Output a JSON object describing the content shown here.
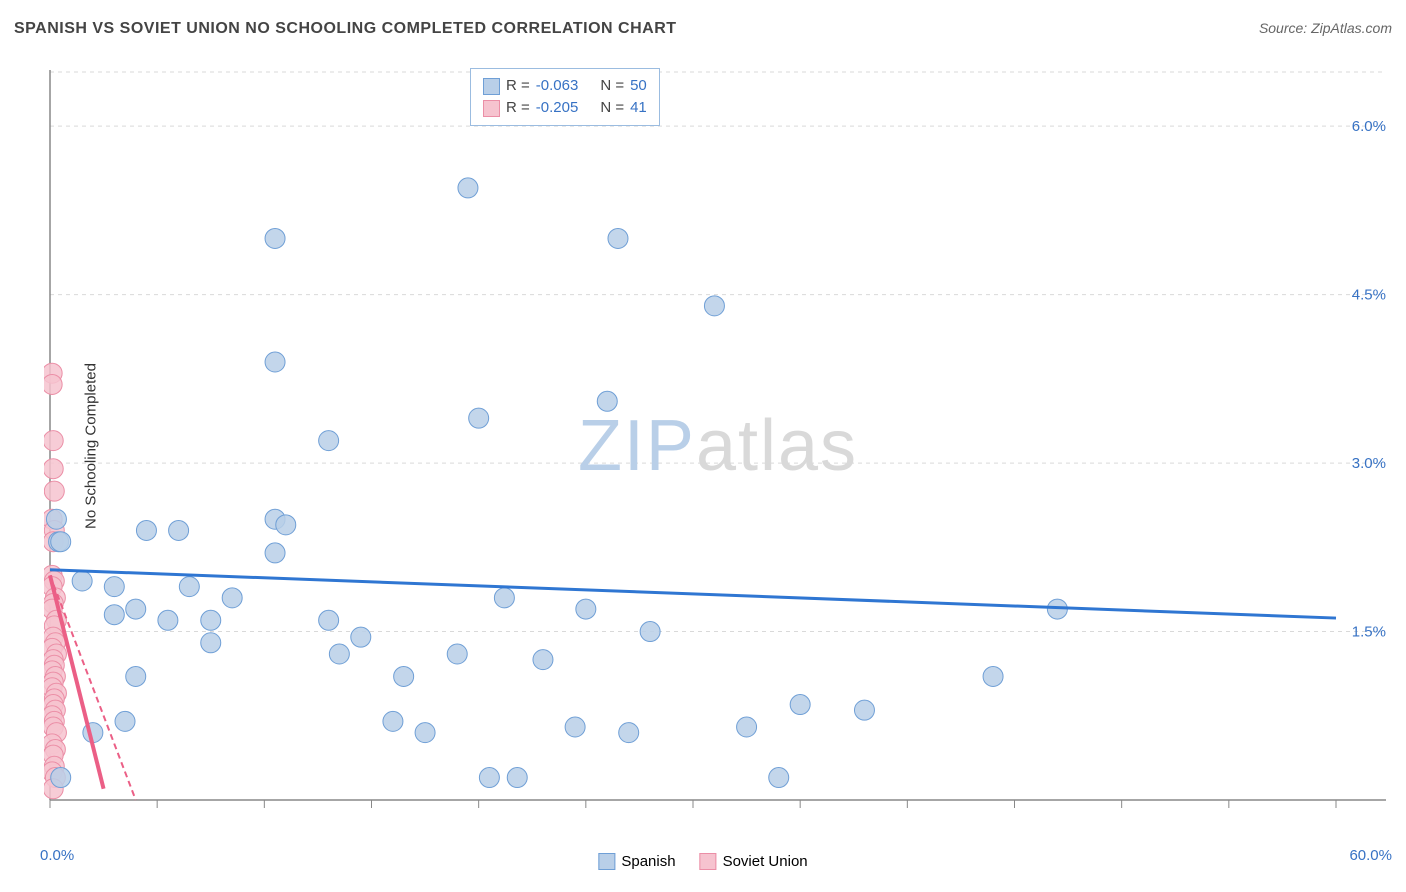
{
  "title": "SPANISH VS SOVIET UNION NO SCHOOLING COMPLETED CORRELATION CHART",
  "source": "Source: ZipAtlas.com",
  "title_color": "#444444",
  "source_color": "#666666",
  "y_axis_label": "No Schooling Completed",
  "watermark": {
    "big": "ZIP",
    "small": "atlas",
    "big_color": "#b9cfe8",
    "small_color": "#d9d9d9"
  },
  "chart": {
    "type": "scatter",
    "background_color": "#ffffff",
    "axis_color": "#888888",
    "grid_color": "#d9d9d9",
    "tick_color": "#888888",
    "x": {
      "min": 0,
      "max": 60,
      "origin_label": "0.0%",
      "end_label": "60.0%",
      "tick_step": 5,
      "label_color": "#3772c4"
    },
    "y": {
      "min": 0,
      "max": 6.5,
      "grid_values": [
        1.5,
        3.0,
        4.5,
        6.0
      ],
      "grid_labels": [
        "1.5%",
        "3.0%",
        "4.5%",
        "6.0%"
      ],
      "label_color": "#3772c4"
    },
    "marker_radius": 10,
    "marker_border_width": 1,
    "series": [
      {
        "name": "Spanish",
        "fill": "#b9cfe8",
        "stroke": "#6f9fd6",
        "r_value": "-0.063",
        "n_value": "50",
        "trend": {
          "y_at_xmin": 2.05,
          "y_at_xmax": 1.62,
          "color": "#2f76d2",
          "width": 3
        },
        "points": [
          [
            0.3,
            2.5
          ],
          [
            0.4,
            2.3
          ],
          [
            0.5,
            2.3
          ],
          [
            0.5,
            0.2
          ],
          [
            1.5,
            1.95
          ],
          [
            2.0,
            0.6
          ],
          [
            3.0,
            1.65
          ],
          [
            3.0,
            1.9
          ],
          [
            3.5,
            0.7
          ],
          [
            4.0,
            1.7
          ],
          [
            4.0,
            1.1
          ],
          [
            4.5,
            2.4
          ],
          [
            5.5,
            1.6
          ],
          [
            6.0,
            2.4
          ],
          [
            6.5,
            1.9
          ],
          [
            7.5,
            1.4
          ],
          [
            7.5,
            1.6
          ],
          [
            8.5,
            1.8
          ],
          [
            10.5,
            2.5
          ],
          [
            10.5,
            2.2
          ],
          [
            10.5,
            3.9
          ],
          [
            10.5,
            5.0
          ],
          [
            11.0,
            2.45
          ],
          [
            13.0,
            1.6
          ],
          [
            13.0,
            3.2
          ],
          [
            13.5,
            1.3
          ],
          [
            14.5,
            1.45
          ],
          [
            16.0,
            0.7
          ],
          [
            16.5,
            1.1
          ],
          [
            17.5,
            0.6
          ],
          [
            19.0,
            1.3
          ],
          [
            19.5,
            5.45
          ],
          [
            20.0,
            3.4
          ],
          [
            20.5,
            0.2
          ],
          [
            21.2,
            1.8
          ],
          [
            21.8,
            0.2
          ],
          [
            23.0,
            1.25
          ],
          [
            24.5,
            0.65
          ],
          [
            25.0,
            1.7
          ],
          [
            26.0,
            3.55
          ],
          [
            27.0,
            0.6
          ],
          [
            26.5,
            5.0
          ],
          [
            28.0,
            1.5
          ],
          [
            31.0,
            4.4
          ],
          [
            32.5,
            0.65
          ],
          [
            34.0,
            0.2
          ],
          [
            35.0,
            0.85
          ],
          [
            38.0,
            0.8
          ],
          [
            44.0,
            1.1
          ],
          [
            47.0,
            1.7
          ]
        ]
      },
      {
        "name": "Soviet Union",
        "fill": "#f6c3cf",
        "stroke": "#eb8ea6",
        "r_value": "-0.205",
        "n_value": "41",
        "trend": {
          "y_at_xmin": 2.0,
          "y_at_xmax_x": 4.0,
          "y_at_xmax": 0.0,
          "color": "#eb5f86",
          "width": 2,
          "dash": "6 4"
        },
        "trend_solid": {
          "y_at_xmin": 2.0,
          "y_at_x": 2.5,
          "y": 0.1,
          "color": "#eb5f86",
          "width": 4
        },
        "points": [
          [
            0.1,
            3.8
          ],
          [
            0.1,
            3.7
          ],
          [
            0.15,
            3.2
          ],
          [
            0.15,
            2.95
          ],
          [
            0.2,
            2.75
          ],
          [
            0.1,
            2.5
          ],
          [
            0.2,
            2.4
          ],
          [
            0.15,
            2.3
          ],
          [
            0.1,
            2.0
          ],
          [
            0.2,
            1.95
          ],
          [
            0.1,
            1.9
          ],
          [
            0.25,
            1.8
          ],
          [
            0.15,
            1.75
          ],
          [
            0.1,
            1.7
          ],
          [
            0.3,
            1.6
          ],
          [
            0.2,
            1.55
          ],
          [
            0.15,
            1.45
          ],
          [
            0.25,
            1.4
          ],
          [
            0.1,
            1.35
          ],
          [
            0.3,
            1.3
          ],
          [
            0.15,
            1.25
          ],
          [
            0.2,
            1.2
          ],
          [
            0.1,
            1.15
          ],
          [
            0.25,
            1.1
          ],
          [
            0.15,
            1.05
          ],
          [
            0.1,
            1.0
          ],
          [
            0.3,
            0.95
          ],
          [
            0.2,
            0.9
          ],
          [
            0.15,
            0.85
          ],
          [
            0.25,
            0.8
          ],
          [
            0.1,
            0.75
          ],
          [
            0.2,
            0.7
          ],
          [
            0.15,
            0.65
          ],
          [
            0.3,
            0.6
          ],
          [
            0.1,
            0.5
          ],
          [
            0.25,
            0.45
          ],
          [
            0.15,
            0.4
          ],
          [
            0.2,
            0.3
          ],
          [
            0.1,
            0.25
          ],
          [
            0.25,
            0.2
          ],
          [
            0.15,
            0.1
          ]
        ]
      }
    ]
  },
  "legend_box": {
    "r_label": "R =",
    "n_label": "N =",
    "text_color": "#444444",
    "value_color": "#3772c4"
  },
  "bottom_legend": [
    {
      "label": "Spanish",
      "fill": "#b9cfe8",
      "stroke": "#6f9fd6"
    },
    {
      "label": "Soviet Union",
      "fill": "#f6c3cf",
      "stroke": "#eb8ea6"
    }
  ]
}
